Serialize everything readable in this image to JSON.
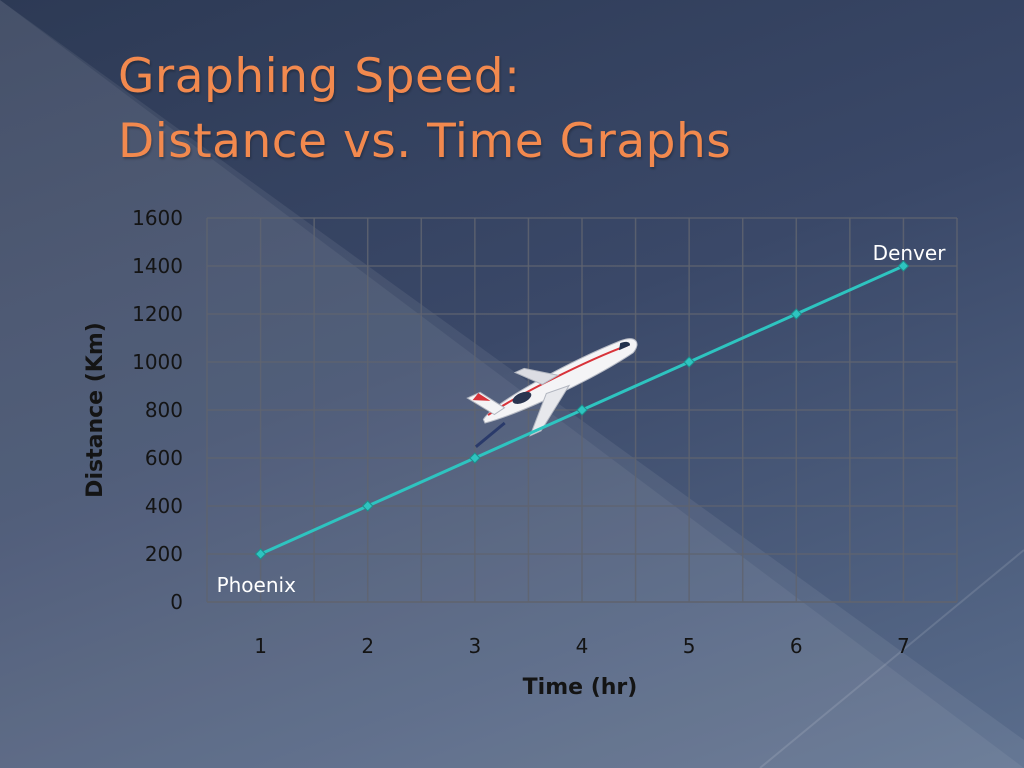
{
  "slide": {
    "title_line1": "Graphing Speed:",
    "title_line2": "Distance vs. Time Graphs",
    "title_color": "#f2894e"
  },
  "chart_data": {
    "type": "line",
    "x": [
      1,
      2,
      3,
      4,
      5,
      6,
      7
    ],
    "series": [
      {
        "values": [
          200,
          400,
          600,
          800,
          1000,
          1200,
          1400
        ],
        "color": "#2ec4c0"
      }
    ],
    "xlabel": "Time (hr)",
    "ylabel": "Distance (Km)",
    "x_ticks": [
      "1",
      "2",
      "3",
      "4",
      "5",
      "6",
      "7"
    ],
    "y_ticks": [
      "0",
      "200",
      "400",
      "600",
      "800",
      "1000",
      "1200",
      "1400",
      "1600"
    ],
    "ylim": [
      0,
      1600
    ],
    "grid": true,
    "annotations": [
      {
        "text": "Phoenix",
        "x": 1,
        "y": 200
      },
      {
        "text": "Denver",
        "x": 7,
        "y": 1400
      }
    ],
    "decoration": "airplane-icon"
  }
}
